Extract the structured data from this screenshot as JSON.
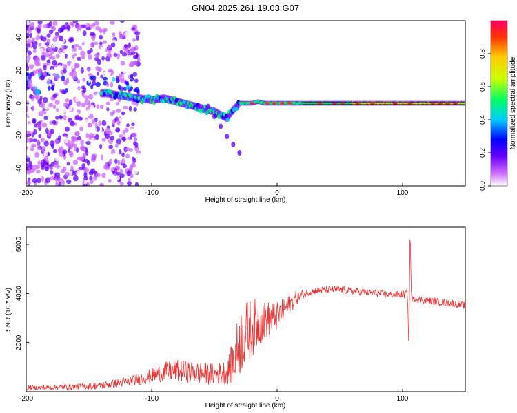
{
  "title": "GN04.2025.261.19.03.G07",
  "chart_data": [
    {
      "type": "heatmap",
      "name": "spectrogram",
      "xlabel": "Height of straight line (km)",
      "ylabel": "Frequency (Hz)",
      "xlim": [
        -200,
        150
      ],
      "ylim": [
        -50,
        50
      ],
      "xticks": [
        -200,
        -100,
        0,
        100
      ],
      "yticks": [
        -40,
        -20,
        0,
        20,
        40
      ],
      "colorbar": {
        "label": "Normalized spectral amplitude",
        "range": [
          0,
          1
        ],
        "ticks": [
          0.0,
          0.2,
          0.4,
          0.6,
          0.8
        ],
        "tick_labels": [
          "0.0",
          "0.2",
          "0.4",
          "0.6",
          "0.8"
        ],
        "colors": [
          "#ffffff",
          "#cc66ff",
          "#6600ff",
          "#0000ff",
          "#00ccff",
          "#00ff66",
          "#ccff00",
          "#ffcc00",
          "#ff3300",
          "#ff0066"
        ]
      },
      "ridge": {
        "x": [
          -135,
          -120,
          -110,
          -100,
          -90,
          -80,
          -70,
          -60,
          -50,
          -45,
          -40,
          -35,
          -30,
          -25,
          -20,
          -15,
          -10,
          0,
          20,
          50,
          80,
          100,
          120,
          150
        ],
        "y": [
          6,
          4,
          3,
          2,
          3,
          1,
          -1,
          -3,
          -5,
          -7,
          -9,
          -4,
          0,
          0,
          0,
          1,
          0,
          0,
          0,
          0,
          0,
          0,
          0,
          0
        ]
      },
      "tail": {
        "x": [
          -55,
          -50,
          -45,
          -40,
          -35,
          -30
        ],
        "y": [
          -2,
          -8,
          -14,
          -20,
          -25,
          -30
        ]
      }
    },
    {
      "type": "line",
      "name": "snr",
      "xlabel": "Height of straight line (km)",
      "ylabel": "SNR (10 * v/v)",
      "xlim": [
        -200,
        150
      ],
      "ylim": [
        0,
        6700
      ],
      "xticks": [
        -200,
        -100,
        0,
        100
      ],
      "yticks": [
        2000,
        4000,
        6000
      ],
      "color": "#ee3333",
      "series": [
        {
          "name": "SNR",
          "x": [
            -200,
            -180,
            -160,
            -140,
            -120,
            -110,
            -100,
            -90,
            -80,
            -70,
            -60,
            -50,
            -40,
            -35,
            -30,
            -25,
            -20,
            -15,
            -10,
            -5,
            0,
            5,
            10,
            15,
            20,
            25,
            30,
            40,
            50,
            60,
            70,
            80,
            90,
            100,
            104,
            105,
            106,
            107,
            108,
            110,
            120,
            130,
            140,
            150
          ],
          "y": [
            150,
            170,
            200,
            250,
            400,
            500,
            650,
            800,
            850,
            800,
            750,
            700,
            800,
            1200,
            2000,
            2400,
            2600,
            2800,
            2900,
            3000,
            3050,
            3300,
            3550,
            3800,
            3950,
            4050,
            4100,
            4150,
            4150,
            4100,
            4050,
            4000,
            3950,
            3950,
            4000,
            1700,
            6700,
            3900,
            3750,
            3800,
            3700,
            3650,
            3600,
            3500
          ],
          "noise": [
            100,
            100,
            120,
            150,
            200,
            250,
            300,
            400,
            450,
            450,
            450,
            450,
            500,
            900,
            1400,
            1300,
            1200,
            1000,
            800,
            700,
            600,
            500,
            400,
            300,
            200,
            150,
            150,
            150,
            150,
            150,
            150,
            150,
            150,
            150,
            200,
            0,
            0,
            200,
            150,
            150,
            150,
            150,
            150,
            150
          ]
        }
      ]
    }
  ]
}
